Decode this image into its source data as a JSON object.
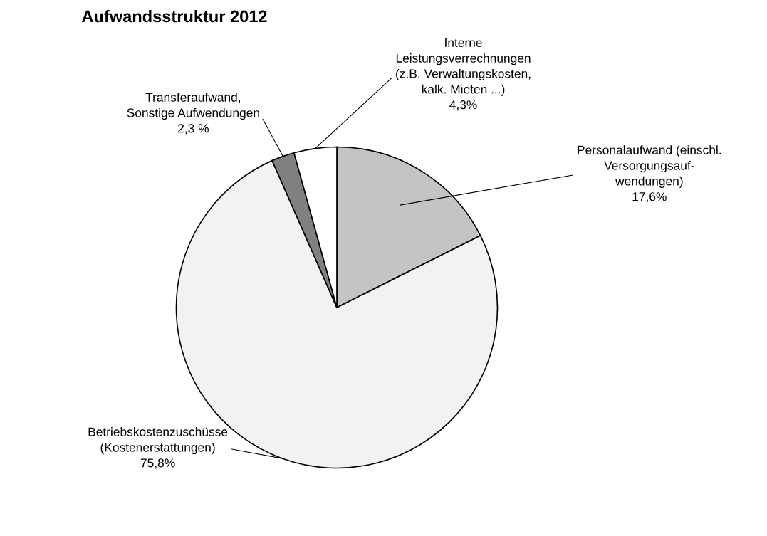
{
  "chart_data": {
    "type": "pie",
    "title": "Aufwandsstruktur 2012",
    "categories": [
      "Personalaufwand (einschl.\nVersorgungsauf-\nwendungen)",
      "Betriebskostenzuschüsse\n(Kostenerstattungen)",
      "Transferaufwand,\nSonstige Aufwendungen",
      "Interne\nLeistungsverrechnungen\n(z.B. Verwaltungskosten,\nkalk. Mieten ...)"
    ],
    "values": [
      17.6,
      75.8,
      2.3,
      4.3
    ],
    "value_labels": [
      "17,6%",
      "75,8%",
      "2,3 %",
      "4,3%"
    ],
    "colors": [
      "#c4c4c4",
      "#f2f2f2",
      "#808080",
      "#ffffff"
    ]
  }
}
